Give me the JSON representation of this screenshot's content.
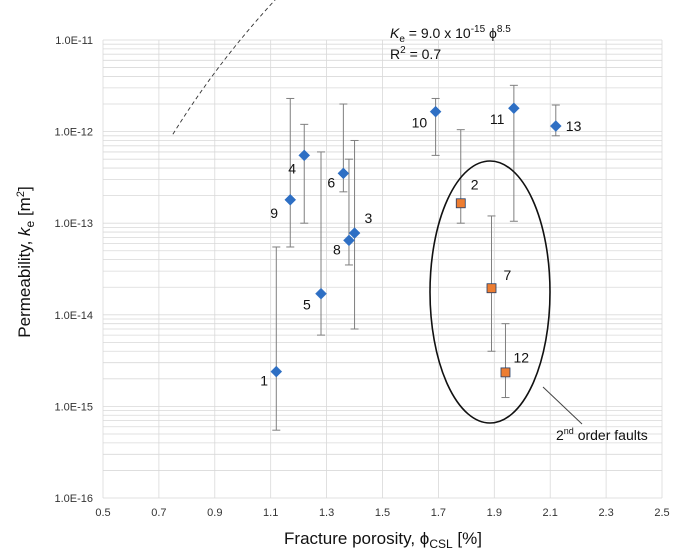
{
  "chart_data": {
    "type": "scatter",
    "xlabel": {
      "main": "Fracture porosity, ",
      "symbol": "ϕ",
      "sub": "CSL",
      "unit": " [%]"
    },
    "ylabel": {
      "main": "Permeability, ",
      "italic": "k",
      "sub": "e",
      "unit": " [m",
      "sup": "2",
      "close": "]"
    },
    "xlim": [
      0.5,
      2.5
    ],
    "ylim_log10": [
      -16,
      -11
    ],
    "y_scale": "log",
    "x_ticks": [
      "0.5",
      "0.7",
      "0.9",
      "1.1",
      "1.3",
      "1.5",
      "1.7",
      "1.9",
      "2.1",
      "2.3",
      "2.5"
    ],
    "y_ticks": [
      "1.0E-16",
      "1.0E-15",
      "1.0E-14",
      "1.0E-13",
      "1.0E-12",
      "1.0E-11"
    ],
    "grid": true,
    "equation": {
      "lhs_italic": "K",
      "lhs_sub": "e",
      "mid": " = 9.0 x 10",
      "exp": "-15",
      "phi": " ϕ",
      "phi_exp": "8.5"
    },
    "r2": {
      "prefix": "R",
      "sup": "2",
      "rest": " = 0.7"
    },
    "trend": {
      "coef": 9e-15,
      "power": 8.5,
      "x_range": [
        0.75,
        2.25
      ]
    },
    "colors": {
      "primary": "#2e6fc4",
      "secondary": "#ed7d31",
      "errorbar": "#7f7f7f",
      "grid": "#d9d9d9"
    },
    "series": [
      {
        "marker": "diamond",
        "color": "#2e6fc4",
        "points": [
          {
            "label": "1",
            "x": 1.12,
            "y": 2.4e-15,
            "lo": 5.5e-16,
            "hi": 5.5e-14
          },
          {
            "label": "3",
            "x": 1.4,
            "y": 7.8e-14,
            "lo": 7e-15,
            "hi": 8e-13
          },
          {
            "label": "4",
            "x": 1.22,
            "y": 5.5e-13,
            "lo": 1e-13,
            "hi": 1.2e-12
          },
          {
            "label": "5",
            "x": 1.28,
            "y": 1.7e-14,
            "lo": 6e-15,
            "hi": 6e-13
          },
          {
            "label": "6",
            "x": 1.36,
            "y": 3.5e-13,
            "lo": 2.2e-13,
            "hi": 2e-12
          },
          {
            "label": "8",
            "x": 1.38,
            "y": 6.5e-14,
            "lo": 3.5e-14,
            "hi": 5e-13
          },
          {
            "label": "9",
            "x": 1.17,
            "y": 1.8e-13,
            "lo": 5.5e-14,
            "hi": 2.3e-12
          },
          {
            "label": "10",
            "x": 1.69,
            "y": 1.65e-12,
            "lo": 5.5e-13,
            "hi": 2.3e-12
          },
          {
            "label": "11",
            "x": 1.97,
            "y": 1.8e-12,
            "lo": 1.05e-13,
            "hi": 3.2e-12
          },
          {
            "label": "13",
            "x": 2.12,
            "y": 1.15e-12,
            "lo": 9e-13,
            "hi": 1.95e-12
          }
        ]
      },
      {
        "marker": "square",
        "color": "#ed7d31",
        "points": [
          {
            "label": "2",
            "x": 1.78,
            "y": 1.65e-13,
            "lo": 1e-13,
            "hi": 1.05e-12
          },
          {
            "label": "7",
            "x": 1.89,
            "y": 1.95e-14,
            "lo": 4e-15,
            "hi": 1.2e-13
          },
          {
            "label": "12",
            "x": 1.94,
            "y": 2.35e-15,
            "lo": 1.25e-15,
            "hi": 8e-15
          }
        ]
      }
    ],
    "annotation": {
      "prefix": "2",
      "sup": "nd",
      "rest": " order faults"
    }
  }
}
